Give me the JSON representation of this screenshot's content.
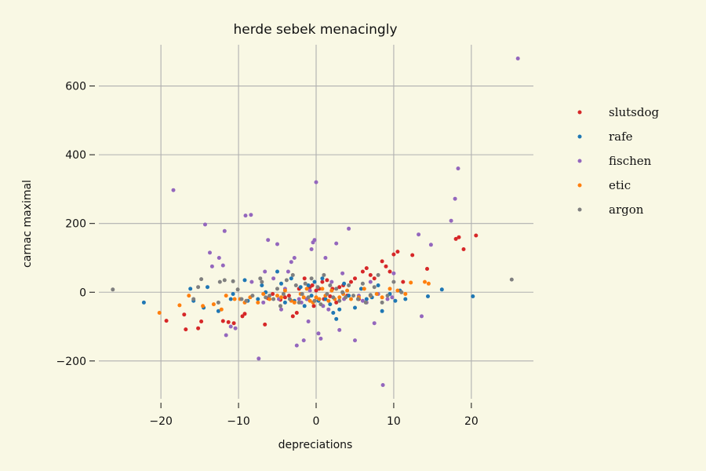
{
  "chart_data": {
    "type": "scatter",
    "title": "herde sebek menacingly",
    "xlabel": "depreciations",
    "ylabel": "carnac maximal",
    "xlim": [
      -28,
      28
    ],
    "ylim": [
      -310,
      720
    ],
    "xticks": [
      -20,
      -10,
      0,
      10,
      20
    ],
    "xtick_labels": [
      "−20",
      "−10",
      "0",
      "10",
      "20"
    ],
    "yticks": [
      -200,
      0,
      200,
      400,
      600
    ],
    "ytick_labels": [
      "−200",
      "0",
      "200",
      "400",
      "600"
    ],
    "grid": true,
    "legend_position": "right",
    "background": "#f9f8e4",
    "series": [
      {
        "name": "slutsdog",
        "color": "#d62728",
        "points": [
          [
            -19.3,
            -83
          ],
          [
            -17,
            -65
          ],
          [
            -16.8,
            -108
          ],
          [
            -15.2,
            -105
          ],
          [
            -14.8,
            -85
          ],
          [
            -12,
            -84
          ],
          [
            -11.3,
            -87
          ],
          [
            -10.6,
            -90
          ],
          [
            -9.5,
            -70
          ],
          [
            -9.2,
            -63
          ],
          [
            -6.6,
            -94
          ],
          [
            -6.2,
            -18
          ],
          [
            -5.6,
            -5
          ],
          [
            -4.6,
            -22
          ],
          [
            -4,
            -15
          ],
          [
            -3.5,
            -10
          ],
          [
            -3,
            -70
          ],
          [
            -2.5,
            -60
          ],
          [
            -2.2,
            10
          ],
          [
            -1.5,
            40
          ],
          [
            -1.2,
            -20
          ],
          [
            -0.8,
            15
          ],
          [
            -0.5,
            20
          ],
          [
            -0.3,
            -40
          ],
          [
            0,
            5
          ],
          [
            0.4,
            10
          ],
          [
            0.8,
            30
          ],
          [
            1,
            -20
          ],
          [
            1.4,
            35
          ],
          [
            1.8,
            -12
          ],
          [
            2.1,
            10
          ],
          [
            2.6,
            -30
          ],
          [
            3,
            15
          ],
          [
            3.5,
            20
          ],
          [
            4,
            -10
          ],
          [
            4.5,
            30
          ],
          [
            5,
            40
          ],
          [
            5.5,
            -20
          ],
          [
            6,
            60
          ],
          [
            6.5,
            70
          ],
          [
            7,
            50
          ],
          [
            7.5,
            40
          ],
          [
            8.5,
            90
          ],
          [
            9,
            75
          ],
          [
            9.5,
            60
          ],
          [
            10,
            110
          ],
          [
            10.5,
            118
          ],
          [
            11.2,
            30
          ],
          [
            12.4,
            108
          ],
          [
            14.3,
            68
          ],
          [
            18,
            155
          ],
          [
            18.4,
            160
          ],
          [
            19,
            125
          ],
          [
            20.6,
            165
          ]
        ]
      },
      {
        "name": "rafe",
        "color": "#1f77b4",
        "points": [
          [
            -22.2,
            -30
          ],
          [
            -16.2,
            10
          ],
          [
            -15.8,
            -25
          ],
          [
            -14.5,
            -45
          ],
          [
            -14,
            15
          ],
          [
            -12.6,
            -55
          ],
          [
            -11,
            -20
          ],
          [
            -10.7,
            -5
          ],
          [
            -9.2,
            35
          ],
          [
            -8.8,
            -25
          ],
          [
            -7.5,
            -20
          ],
          [
            -7,
            20
          ],
          [
            -6.5,
            0
          ],
          [
            -5,
            60
          ],
          [
            -4.5,
            25
          ],
          [
            -4,
            -30
          ],
          [
            -3.2,
            40
          ],
          [
            -2.8,
            -25
          ],
          [
            -2,
            15
          ],
          [
            -1.5,
            -40
          ],
          [
            -1,
            20
          ],
          [
            -0.6,
            -10
          ],
          [
            -0.2,
            30
          ],
          [
            0.3,
            -25
          ],
          [
            0.8,
            40
          ],
          [
            1.2,
            -20
          ],
          [
            1.8,
            -35
          ],
          [
            2.2,
            -60
          ],
          [
            2.6,
            -78
          ],
          [
            3,
            -50
          ],
          [
            3.6,
            25
          ],
          [
            4.2,
            -10
          ],
          [
            5,
            -45
          ],
          [
            5.8,
            10
          ],
          [
            6.5,
            -20
          ],
          [
            7.2,
            -15
          ],
          [
            8,
            20
          ],
          [
            8.5,
            -55
          ],
          [
            9.5,
            -5
          ],
          [
            10.2,
            -25
          ],
          [
            10.8,
            5
          ],
          [
            11.5,
            -20
          ],
          [
            14.4,
            -12
          ],
          [
            16.2,
            8
          ],
          [
            20.2,
            -12
          ]
        ]
      },
      {
        "name": "fischen",
        "color": "#9467bd",
        "points": [
          [
            -18.4,
            297
          ],
          [
            -14.3,
            197
          ],
          [
            -13.7,
            115
          ],
          [
            -13.4,
            75
          ],
          [
            -12.5,
            100
          ],
          [
            -12,
            78
          ],
          [
            -11.8,
            178
          ],
          [
            -11.6,
            -125
          ],
          [
            -11,
            -100
          ],
          [
            -10.4,
            -105
          ],
          [
            -9.1,
            223
          ],
          [
            -8.4,
            225
          ],
          [
            -8.3,
            30
          ],
          [
            -7.4,
            -193
          ],
          [
            -6.8,
            -30
          ],
          [
            -6.6,
            60
          ],
          [
            -6.2,
            152
          ],
          [
            -5.5,
            40
          ],
          [
            -5,
            140
          ],
          [
            -4.8,
            -20
          ],
          [
            -4.5,
            -50
          ],
          [
            -4,
            10
          ],
          [
            -3.6,
            60
          ],
          [
            -3.2,
            88
          ],
          [
            -2.8,
            100
          ],
          [
            -2.5,
            -155
          ],
          [
            -2.2,
            -20
          ],
          [
            -1.9,
            -30
          ],
          [
            -1.6,
            -140
          ],
          [
            -1.2,
            -20
          ],
          [
            -1,
            -85
          ],
          [
            -0.8,
            5
          ],
          [
            -0.6,
            125
          ],
          [
            -0.4,
            145
          ],
          [
            -0.2,
            152
          ],
          [
            0,
            320
          ],
          [
            0.3,
            -120
          ],
          [
            0.6,
            -135
          ],
          [
            0.9,
            -40
          ],
          [
            1.2,
            100
          ],
          [
            1.6,
            -50
          ],
          [
            2,
            30
          ],
          [
            2.6,
            142
          ],
          [
            3,
            -110
          ],
          [
            3.4,
            55
          ],
          [
            3.6,
            -20
          ],
          [
            4.2,
            185
          ],
          [
            5,
            -140
          ],
          [
            5.5,
            -10
          ],
          [
            6,
            -25
          ],
          [
            6.5,
            -30
          ],
          [
            7,
            30
          ],
          [
            7.5,
            -90
          ],
          [
            8,
            -5
          ],
          [
            8.6,
            -270
          ],
          [
            9.2,
            -20
          ],
          [
            9.8,
            -15
          ],
          [
            10,
            55
          ],
          [
            13.2,
            168
          ],
          [
            13.6,
            -70
          ],
          [
            14.8,
            138
          ],
          [
            17.4,
            208
          ],
          [
            17.9,
            272
          ],
          [
            18.3,
            360
          ],
          [
            26,
            680
          ]
        ]
      },
      {
        "name": "etic",
        "color": "#ff7f0e",
        "points": [
          [
            -20.2,
            -60
          ],
          [
            -17.6,
            -38
          ],
          [
            -16.4,
            -10
          ],
          [
            -14.6,
            -40
          ],
          [
            -13.2,
            -35
          ],
          [
            -12.2,
            -50
          ],
          [
            -11.6,
            -10
          ],
          [
            -10.5,
            -20
          ],
          [
            -9.8,
            -20
          ],
          [
            -9.2,
            -30
          ],
          [
            -8.5,
            -15
          ],
          [
            -7.5,
            -30
          ],
          [
            -6.8,
            -5
          ],
          [
            -6,
            -20
          ],
          [
            -5,
            -10
          ],
          [
            -4.5,
            -15
          ],
          [
            -4,
            5
          ],
          [
            -3.2,
            -25
          ],
          [
            -2.8,
            -30
          ],
          [
            -2,
            -5
          ],
          [
            -1.6,
            -15
          ],
          [
            -1.2,
            10
          ],
          [
            -0.8,
            -25
          ],
          [
            -0.4,
            -30
          ],
          [
            0,
            -15
          ],
          [
            0.4,
            -20
          ],
          [
            0.8,
            10
          ],
          [
            1.2,
            -10
          ],
          [
            1.6,
            -25
          ],
          [
            2,
            5
          ],
          [
            2.4,
            -20
          ],
          [
            3,
            -15
          ],
          [
            3.5,
            -5
          ],
          [
            4,
            5
          ],
          [
            4.5,
            -20
          ],
          [
            5.5,
            -15
          ],
          [
            6.2,
            10
          ],
          [
            7,
            -10
          ],
          [
            7.8,
            -5
          ],
          [
            8.5,
            -15
          ],
          [
            9.5,
            10
          ],
          [
            10.5,
            5
          ],
          [
            11.5,
            -5
          ],
          [
            12.2,
            28
          ],
          [
            14,
            30
          ],
          [
            14.5,
            25
          ]
        ]
      },
      {
        "name": "argon",
        "color": "#7f7f7f",
        "points": [
          [
            -26.2,
            8
          ],
          [
            -15.8,
            -20
          ],
          [
            -15.2,
            15
          ],
          [
            -14.8,
            38
          ],
          [
            -12.6,
            -30
          ],
          [
            -12.4,
            30
          ],
          [
            -11.8,
            35
          ],
          [
            -10.7,
            32
          ],
          [
            -10.1,
            8
          ],
          [
            -9.6,
            -20
          ],
          [
            -9,
            -25
          ],
          [
            -8.2,
            -10
          ],
          [
            -7.2,
            40
          ],
          [
            -7,
            30
          ],
          [
            -6.5,
            -15
          ],
          [
            -6,
            -10
          ],
          [
            -5.5,
            -20
          ],
          [
            -5,
            10
          ],
          [
            -4.6,
            -40
          ],
          [
            -4.2,
            -5
          ],
          [
            -3.8,
            35
          ],
          [
            -3.4,
            -20
          ],
          [
            -3,
            50
          ],
          [
            -2.6,
            20
          ],
          [
            -2.2,
            -30
          ],
          [
            -1.8,
            -5
          ],
          [
            -1.4,
            25
          ],
          [
            -1,
            -15
          ],
          [
            -0.6,
            40
          ],
          [
            -0.2,
            -25
          ],
          [
            0.2,
            15
          ],
          [
            0.6,
            -35
          ],
          [
            1,
            50
          ],
          [
            1.4,
            -5
          ],
          [
            1.8,
            20
          ],
          [
            2.2,
            -15
          ],
          [
            2.6,
            10
          ],
          [
            3,
            -25
          ],
          [
            3.4,
            0
          ],
          [
            3.8,
            -15
          ],
          [
            4.2,
            20
          ],
          [
            4.8,
            -10
          ],
          [
            5.4,
            -20
          ],
          [
            6,
            25
          ],
          [
            6.4,
            -30
          ],
          [
            7,
            -8
          ],
          [
            7.5,
            15
          ],
          [
            8,
            50
          ],
          [
            8.5,
            -30
          ],
          [
            9.2,
            -10
          ],
          [
            10,
            30
          ],
          [
            11,
            0
          ],
          [
            25.2,
            37
          ]
        ]
      }
    ]
  }
}
